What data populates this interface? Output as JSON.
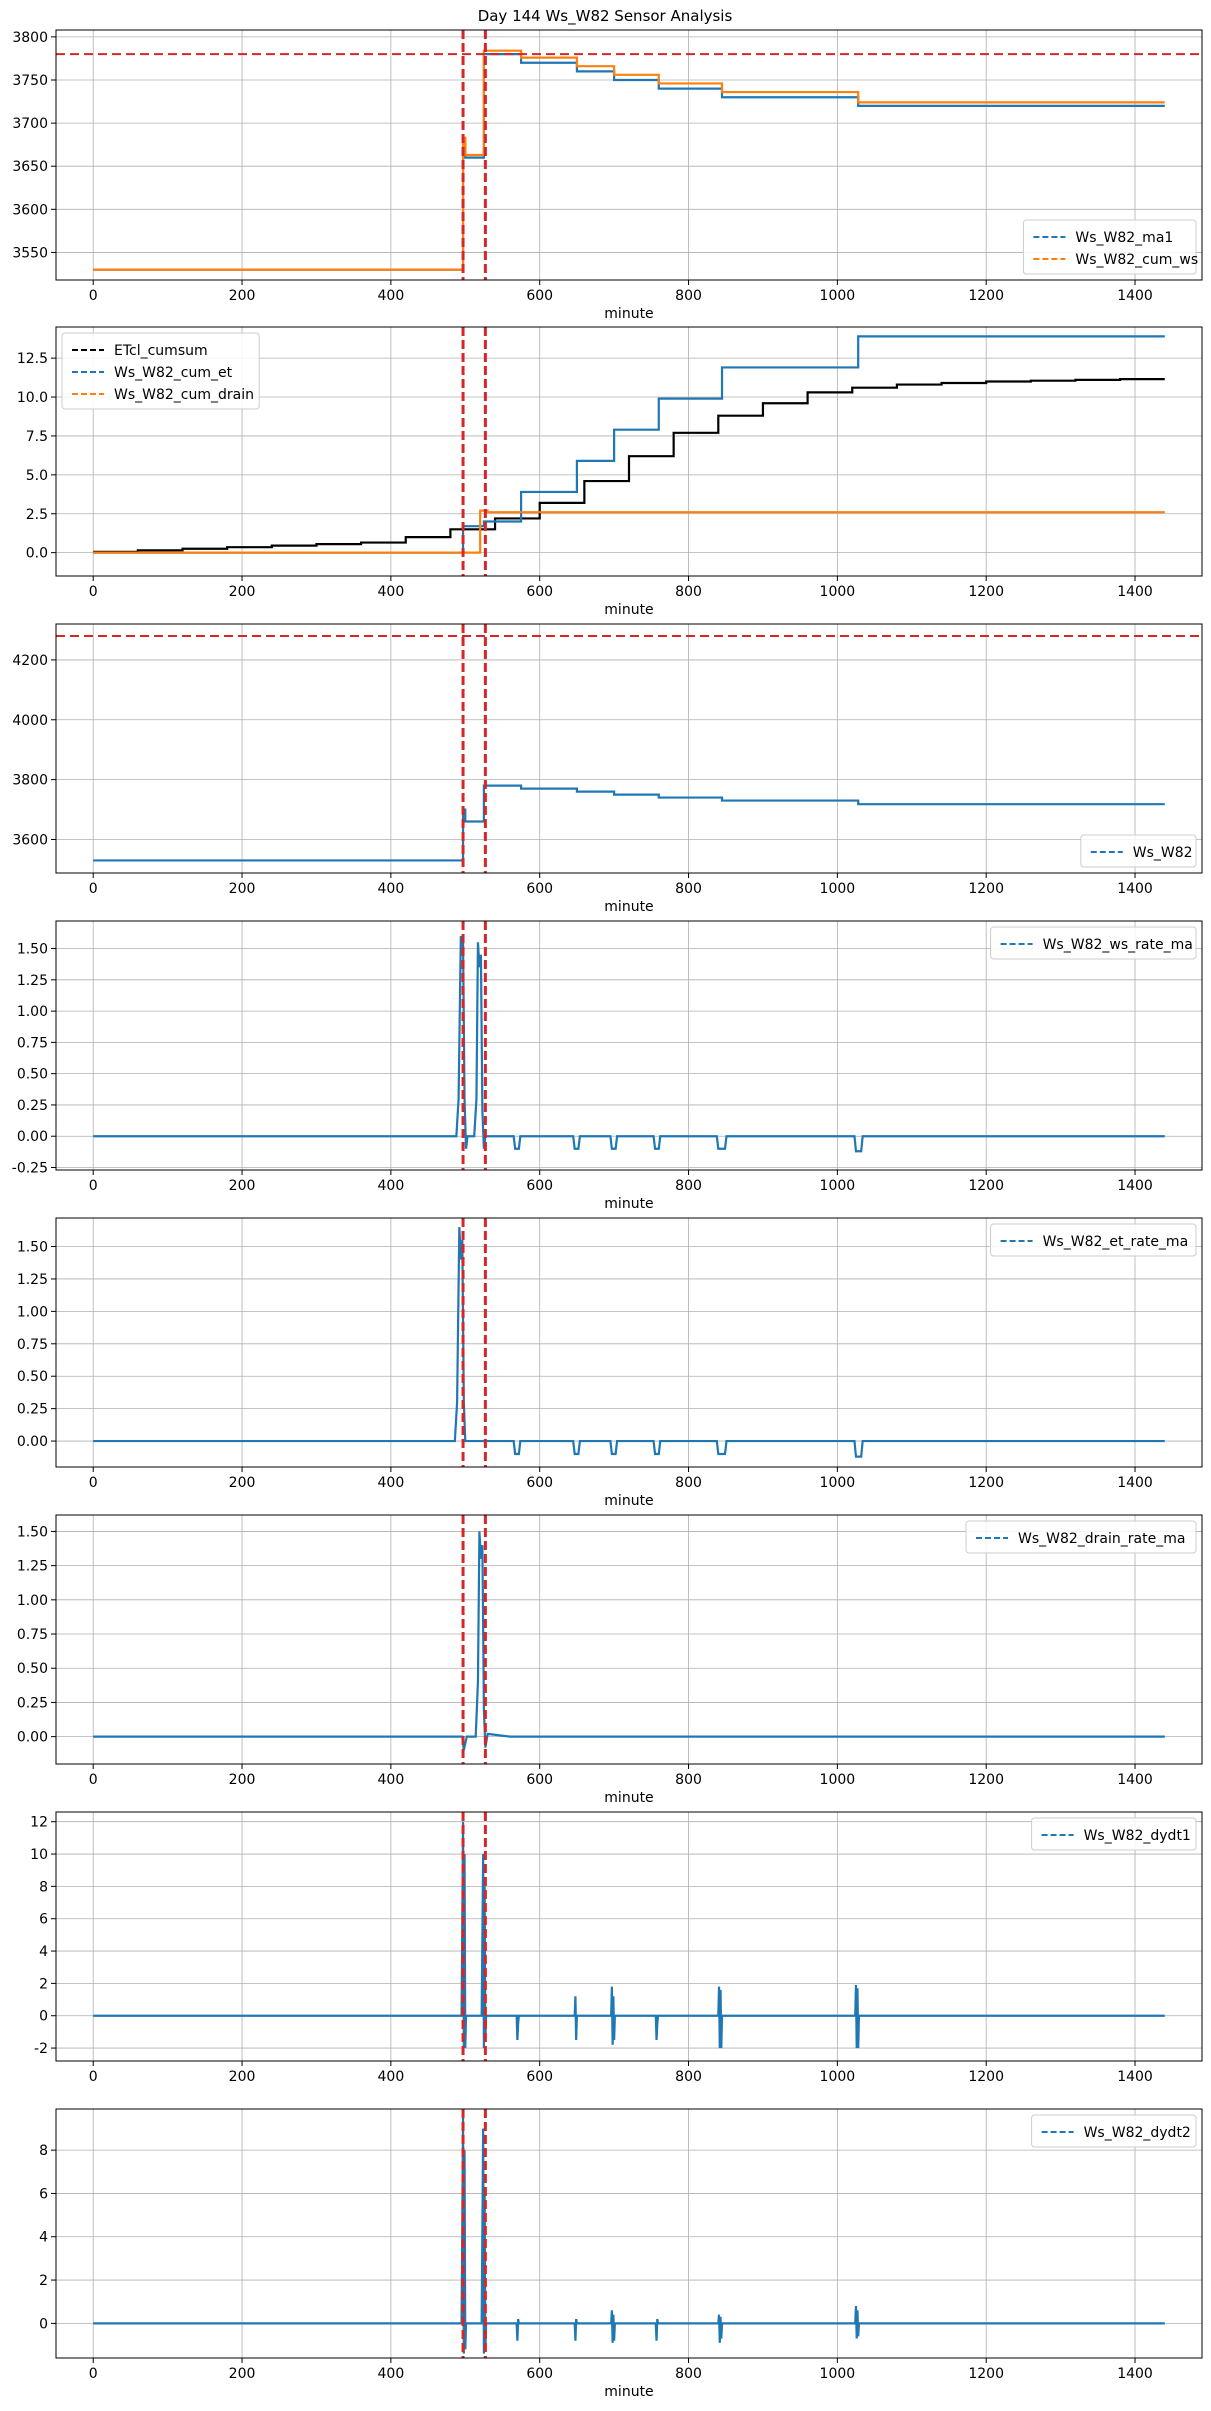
{
  "figure": {
    "title": "Day 144 Ws_W82 Sensor Analysis"
  },
  "chart_data": [
    {
      "type": "line",
      "xlabel": "minute",
      "xlim": [
        -50,
        1490
      ],
      "xticks": [
        0,
        200,
        400,
        600,
        800,
        1000,
        1200,
        1400
      ],
      "ylim": [
        3518,
        3808
      ],
      "yticks": [
        3550,
        3600,
        3650,
        3700,
        3750,
        3800
      ],
      "grid": true,
      "legend_position": "lower-right",
      "hlines": [
        {
          "y": 3780,
          "color": "#d62728"
        }
      ],
      "vlines": [
        {
          "x": 497,
          "color": "#d62728"
        },
        {
          "x": 527,
          "color": "#d62728"
        }
      ],
      "series": [
        {
          "name": "Ws_W82_ma1",
          "color": "#1f77b4",
          "x": [
            0,
            497,
            497,
            500,
            500,
            525,
            525,
            575,
            575,
            650,
            650,
            700,
            700,
            760,
            760,
            845,
            845,
            1028,
            1028,
            1440
          ],
          "y": [
            3530,
            3530,
            3680,
            3680,
            3660,
            3660,
            3780,
            3780,
            3770,
            3770,
            3760,
            3760,
            3750,
            3750,
            3740,
            3740,
            3730,
            3730,
            3720,
            3720
          ]
        },
        {
          "name": "Ws_W82_cum_ws",
          "color": "#ff7f0e",
          "x": [
            0,
            497,
            497,
            500,
            500,
            525,
            525,
            575,
            575,
            650,
            650,
            700,
            700,
            760,
            760,
            845,
            845,
            1028,
            1028,
            1440
          ],
          "y": [
            3530,
            3530,
            3683,
            3683,
            3663,
            3663,
            3784,
            3784,
            3776,
            3776,
            3766,
            3766,
            3756,
            3756,
            3746,
            3746,
            3736,
            3736,
            3724,
            3724
          ]
        }
      ]
    },
    {
      "type": "line",
      "xlabel": "minute",
      "xlim": [
        -50,
        1490
      ],
      "xticks": [
        0,
        200,
        400,
        600,
        800,
        1000,
        1200,
        1400
      ],
      "ylim": [
        -1.5,
        14.5
      ],
      "yticks": [
        0.0,
        2.5,
        5.0,
        7.5,
        10.0,
        12.5
      ],
      "ytick_labels": [
        "0.0",
        "2.5",
        "5.0",
        "7.5",
        "10.0",
        "12.5"
      ],
      "grid": true,
      "legend_position": "upper-left",
      "hlines": [],
      "vlines": [
        {
          "x": 497,
          "color": "#d62728"
        },
        {
          "x": 527,
          "color": "#d62728"
        }
      ],
      "series": [
        {
          "name": "ETcl_cumsum",
          "color": "#000000",
          "x": [
            0,
            60,
            60,
            120,
            120,
            180,
            180,
            240,
            240,
            300,
            300,
            360,
            360,
            420,
            420,
            480,
            480,
            540,
            540,
            600,
            600,
            660,
            660,
            720,
            720,
            780,
            780,
            840,
            840,
            900,
            900,
            960,
            960,
            1020,
            1020,
            1080,
            1080,
            1140,
            1140,
            1200,
            1200,
            1260,
            1260,
            1320,
            1320,
            1380,
            1380,
            1440
          ],
          "y": [
            0.05,
            0.05,
            0.15,
            0.15,
            0.25,
            0.25,
            0.35,
            0.35,
            0.45,
            0.45,
            0.55,
            0.55,
            0.65,
            0.65,
            1.0,
            1.0,
            1.5,
            1.5,
            2.2,
            2.2,
            3.2,
            3.2,
            4.6,
            4.6,
            6.2,
            6.2,
            7.7,
            7.7,
            8.8,
            8.8,
            9.6,
            9.6,
            10.3,
            10.3,
            10.6,
            10.6,
            10.8,
            10.8,
            10.9,
            10.9,
            11.0,
            11.0,
            11.05,
            11.05,
            11.1,
            11.1,
            11.15,
            11.15
          ]
        },
        {
          "name": "Ws_W82_cum_et",
          "color": "#1f77b4",
          "x": [
            0,
            497,
            497,
            525,
            525,
            575,
            575,
            650,
            650,
            700,
            700,
            760,
            760,
            845,
            845,
            1028,
            1028,
            1440
          ],
          "y": [
            0.0,
            0.0,
            1.7,
            1.7,
            2.0,
            2.0,
            3.9,
            3.9,
            5.9,
            5.9,
            7.9,
            7.9,
            9.9,
            9.9,
            11.9,
            11.9,
            13.9,
            13.9
          ]
        },
        {
          "name": "Ws_W82_cum_drain",
          "color": "#ff7f0e",
          "x": [
            0,
            520,
            520,
            530,
            530,
            1440
          ],
          "y": [
            0.0,
            0.0,
            2.7,
            2.7,
            2.6,
            2.6
          ]
        }
      ]
    },
    {
      "type": "line",
      "xlabel": "minute",
      "xlim": [
        -50,
        1490
      ],
      "xticks": [
        0,
        200,
        400,
        600,
        800,
        1000,
        1200,
        1400
      ],
      "ylim": [
        3488,
        4320
      ],
      "yticks": [
        3600,
        3800,
        4000,
        4200
      ],
      "grid": true,
      "legend_position": "lower-right",
      "hlines": [
        {
          "y": 4280,
          "color": "#d62728"
        }
      ],
      "vlines": [
        {
          "x": 497,
          "color": "#d62728"
        },
        {
          "x": 527,
          "color": "#d62728"
        }
      ],
      "series": [
        {
          "name": "Ws_W82",
          "color": "#1f77b4",
          "x": [
            0,
            497,
            497,
            500,
            500,
            525,
            525,
            575,
            575,
            650,
            650,
            700,
            700,
            760,
            760,
            845,
            845,
            1028,
            1028,
            1440
          ],
          "y": [
            3530,
            3530,
            3700,
            3700,
            3660,
            3660,
            3780,
            3780,
            3770,
            3770,
            3760,
            3760,
            3750,
            3750,
            3740,
            3740,
            3730,
            3730,
            3718,
            3718
          ]
        }
      ]
    },
    {
      "type": "line",
      "xlabel": "minute",
      "xlim": [
        -50,
        1490
      ],
      "xticks": [
        0,
        200,
        400,
        600,
        800,
        1000,
        1200,
        1400
      ],
      "ylim": [
        -0.27,
        1.72
      ],
      "yticks": [
        -0.25,
        0.0,
        0.25,
        0.5,
        0.75,
        1.0,
        1.25,
        1.5
      ],
      "ytick_labels": [
        "-0.25",
        "0.00",
        "0.25",
        "0.50",
        "0.75",
        "1.00",
        "1.25",
        "1.50"
      ],
      "grid": true,
      "legend_position": "upper-right",
      "hlines": [],
      "vlines": [
        {
          "x": 497,
          "color": "#d62728"
        },
        {
          "x": 527,
          "color": "#d62728"
        }
      ],
      "series": [
        {
          "name": "Ws_W82_ws_rate_ma",
          "color": "#1f77b4",
          "x": [
            0,
            488,
            491,
            494,
            496,
            497,
            499,
            501,
            503,
            512,
            515,
            517,
            519,
            521,
            523,
            525,
            527,
            565,
            567,
            572,
            574,
            645,
            647,
            652,
            654,
            695,
            697,
            702,
            704,
            753,
            755,
            760,
            762,
            838,
            840,
            849,
            851,
            1023,
            1025,
            1032,
            1034,
            1440
          ],
          "y": [
            0,
            0,
            0.3,
            1.6,
            1.45,
            1.55,
            0.3,
            -0.1,
            0,
            0,
            0.3,
            1.55,
            1.35,
            1.45,
            0.2,
            -0.1,
            0,
            0,
            -0.1,
            -0.1,
            0,
            0,
            -0.1,
            -0.1,
            0,
            0,
            -0.1,
            -0.1,
            0,
            0,
            -0.1,
            -0.1,
            0,
            0,
            -0.1,
            -0.1,
            0,
            0,
            -0.12,
            -0.12,
            0,
            0
          ]
        }
      ]
    },
    {
      "type": "line",
      "xlabel": "minute",
      "xlim": [
        -50,
        1490
      ],
      "xticks": [
        0,
        200,
        400,
        600,
        800,
        1000,
        1200,
        1400
      ],
      "ylim": [
        -0.2,
        1.72
      ],
      "yticks": [
        0.0,
        0.25,
        0.5,
        0.75,
        1.0,
        1.25,
        1.5
      ],
      "ytick_labels": [
        "0.00",
        "0.25",
        "0.50",
        "0.75",
        "1.00",
        "1.25",
        "1.50"
      ],
      "grid": true,
      "legend_position": "upper-right",
      "hlines": [],
      "vlines": [
        {
          "x": 497,
          "color": "#d62728"
        },
        {
          "x": 527,
          "color": "#d62728"
        }
      ],
      "series": [
        {
          "name": "Ws_W82_et_rate_ma",
          "color": "#1f77b4",
          "x": [
            0,
            486,
            489,
            492,
            494,
            496,
            498,
            500,
            565,
            567,
            572,
            574,
            645,
            647,
            652,
            654,
            695,
            697,
            702,
            704,
            753,
            755,
            760,
            762,
            838,
            840,
            849,
            851,
            1023,
            1025,
            1032,
            1034,
            1440
          ],
          "y": [
            0,
            0,
            0.3,
            1.65,
            1.4,
            1.55,
            0.3,
            0,
            0,
            -0.1,
            -0.1,
            0,
            0,
            -0.1,
            -0.1,
            0,
            0,
            -0.1,
            -0.1,
            0,
            0,
            -0.1,
            -0.1,
            0,
            0,
            -0.1,
            -0.1,
            0,
            0,
            -0.12,
            -0.12,
            0,
            0
          ]
        }
      ]
    },
    {
      "type": "line",
      "xlabel": "minute",
      "xlim": [
        -50,
        1490
      ],
      "xticks": [
        0,
        200,
        400,
        600,
        800,
        1000,
        1200,
        1400
      ],
      "ylim": [
        -0.2,
        1.62
      ],
      "yticks": [
        0.0,
        0.25,
        0.5,
        0.75,
        1.0,
        1.25,
        1.5
      ],
      "ytick_labels": [
        "0.00",
        "0.25",
        "0.50",
        "0.75",
        "1.00",
        "1.25",
        "1.50"
      ],
      "grid": true,
      "legend_position": "upper-right",
      "hlines": [],
      "vlines": [
        {
          "x": 497,
          "color": "#d62728"
        },
        {
          "x": 527,
          "color": "#d62728"
        }
      ],
      "series": [
        {
          "name": "Ws_W82_drain_rate_ma",
          "color": "#1f77b4",
          "x": [
            0,
            496,
            498,
            500,
            502,
            514,
            517,
            519,
            521,
            523,
            525,
            527,
            530,
            560,
            1440
          ],
          "y": [
            0,
            0,
            -0.1,
            -0.05,
            0,
            0,
            0.4,
            1.5,
            1.3,
            1.4,
            0.2,
            -0.08,
            0.02,
            0,
            0
          ]
        }
      ]
    },
    {
      "type": "line",
      "xlabel": "",
      "xlim": [
        -50,
        1490
      ],
      "xticks": [
        0,
        200,
        400,
        600,
        800,
        1000,
        1200,
        1400
      ],
      "ylim": [
        -2.8,
        12.6
      ],
      "yticks": [
        -2,
        0,
        2,
        4,
        6,
        8,
        10,
        12
      ],
      "grid": true,
      "legend_position": "upper-right",
      "hlines": [],
      "vlines": [
        {
          "x": 497,
          "color": "#d62728"
        },
        {
          "x": 527,
          "color": "#d62728"
        }
      ],
      "series": [
        {
          "name": "Ws_W82_dydt1",
          "color": "#1f77b4",
          "x": [
            0,
            495,
            497,
            498,
            499,
            500,
            501,
            522,
            524,
            525,
            526,
            527,
            528,
            569,
            570,
            571,
            572,
            647,
            648,
            649,
            650,
            696,
            697,
            698,
            699,
            700,
            701,
            756,
            757,
            758,
            759,
            840,
            841,
            842,
            843,
            844,
            845,
            1024,
            1025,
            1026,
            1027,
            1028,
            1029,
            1440
          ],
          "y": [
            0,
            0,
            12,
            -2,
            10,
            -2,
            0,
            0,
            10,
            -2,
            8,
            -1.5,
            0,
            0,
            -1.5,
            -0.5,
            0,
            0,
            1.2,
            -1.5,
            0,
            0,
            1.8,
            -1.8,
            1.2,
            -1.5,
            0,
            0,
            -1.5,
            -0.5,
            0,
            0,
            1.8,
            -2,
            1.6,
            -2,
            0,
            0,
            1.9,
            -2,
            1.7,
            -2,
            0,
            0
          ]
        }
      ]
    },
    {
      "type": "line",
      "xlabel": "minute",
      "xlim": [
        -50,
        1490
      ],
      "xticks": [
        0,
        200,
        400,
        600,
        800,
        1000,
        1200,
        1400
      ],
      "ylim": [
        -1.6,
        9.9
      ],
      "yticks": [
        0,
        2,
        4,
        6,
        8
      ],
      "grid": true,
      "legend_position": "upper-right",
      "hlines": [],
      "vlines": [
        {
          "x": 497,
          "color": "#d62728"
        },
        {
          "x": 527,
          "color": "#d62728"
        }
      ],
      "series": [
        {
          "name": "Ws_W82_dydt2",
          "color": "#1f77b4",
          "x": [
            0,
            495,
            497,
            498,
            499,
            500,
            501,
            522,
            524,
            525,
            526,
            527,
            528,
            569,
            570,
            571,
            572,
            647,
            648,
            649,
            650,
            696,
            697,
            698,
            699,
            700,
            701,
            756,
            757,
            758,
            759,
            840,
            841,
            842,
            843,
            844,
            845,
            1024,
            1025,
            1026,
            1027,
            1028,
            1029,
            1440
          ],
          "y": [
            0,
            0,
            9.5,
            -1.4,
            8,
            -1.2,
            0,
            0,
            9,
            -1.4,
            6,
            -1.2,
            0,
            0,
            -0.8,
            0.2,
            0,
            0,
            -0.8,
            0.2,
            0,
            0,
            0.6,
            -0.9,
            0.4,
            -0.8,
            0,
            0,
            -0.8,
            0.2,
            0,
            0,
            0.4,
            -0.9,
            0.3,
            -0.7,
            0,
            0,
            0.8,
            -0.7,
            0.6,
            -0.6,
            0,
            0
          ]
        }
      ]
    }
  ]
}
